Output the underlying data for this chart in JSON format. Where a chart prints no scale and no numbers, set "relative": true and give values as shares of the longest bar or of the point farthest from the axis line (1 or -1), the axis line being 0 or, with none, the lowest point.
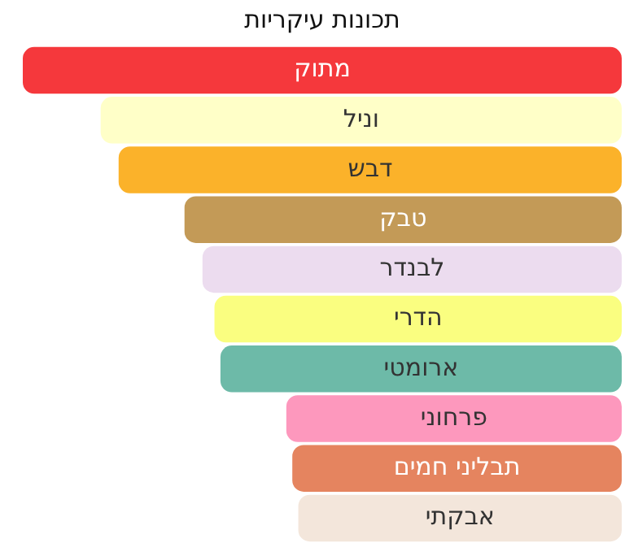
{
  "chart_data": {
    "type": "bar",
    "orientation": "horizontal",
    "relative": true,
    "title": "תכונות עיקריות",
    "categories": [
      "מתוק",
      "וניל",
      "דבש",
      "טבק",
      "לבנדר",
      "הדרי",
      "ארומטי",
      "פרחוני",
      "תבליני חמים",
      "אבקתי"
    ],
    "values": [
      1,
      0.87,
      0.84,
      0.73,
      0.7,
      0.68,
      0.67,
      0.56,
      0.55,
      0.54
    ],
    "colors": [
      "#f5383c",
      "#ffffc8",
      "#fbb22a",
      "#c39a57",
      "#ecdcef",
      "#fafe80",
      "#6dbaa8",
      "#fd98bd",
      "#e5845f",
      "#f3e6db"
    ],
    "legend": false
  }
}
